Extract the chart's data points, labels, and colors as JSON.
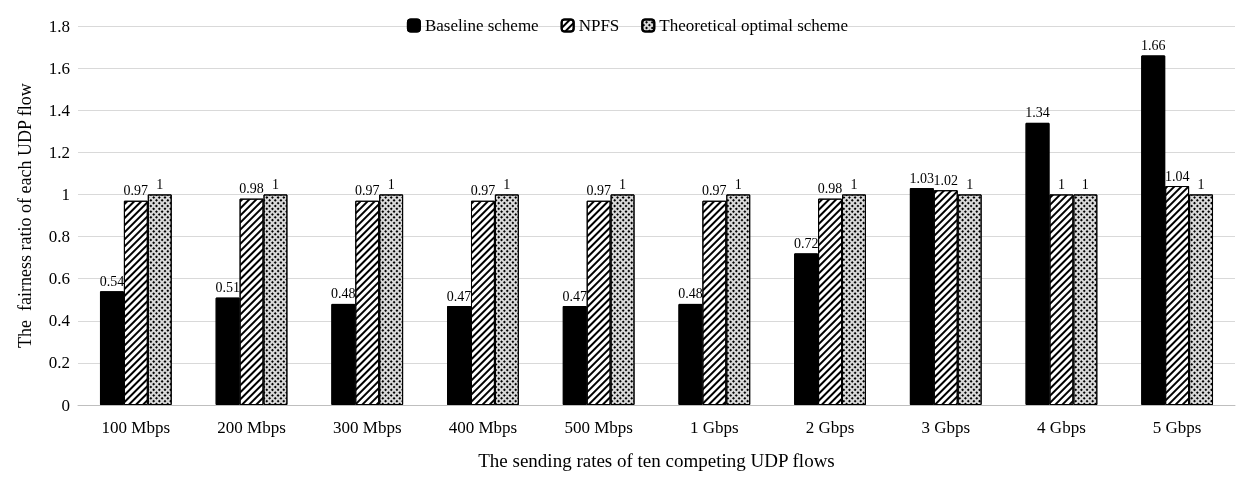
{
  "chart_data": {
    "type": "bar",
    "xlabel": "The sending rates of ten competing UDP flows",
    "ylabel": "The  fairness ratio of each UDP flow",
    "categories": [
      "100 Mbps",
      "200 Mbps",
      "300 Mbps",
      "400 Mbps",
      "500 Mbps",
      "1 Gbps",
      "2 Gbps",
      "3 Gbps",
      "4 Gbps",
      "5 Gbps"
    ],
    "series": [
      {
        "name": "Baseline scheme",
        "color": "#000000",
        "values": [
          0.54,
          0.51,
          0.48,
          0.47,
          0.47,
          0.48,
          0.72,
          1.03,
          1.34,
          1.66
        ]
      },
      {
        "name": "NPFS",
        "color": "#ffffff",
        "values": [
          0.97,
          0.98,
          0.97,
          0.97,
          0.97,
          0.97,
          0.98,
          1.02,
          1,
          1.04
        ]
      },
      {
        "name": "Theoretical optimal scheme",
        "color": "#d9d9d9",
        "values": [
          1,
          1,
          1,
          1,
          1,
          1,
          1,
          1,
          1,
          1
        ]
      }
    ],
    "ylim": [
      0,
      1.8
    ],
    "yticks": [
      0,
      0.2,
      0.4,
      0.6,
      0.8,
      1,
      1.2,
      1.4,
      1.6,
      1.8
    ],
    "grid": "y",
    "legend": "top",
    "data_labels": true
  }
}
